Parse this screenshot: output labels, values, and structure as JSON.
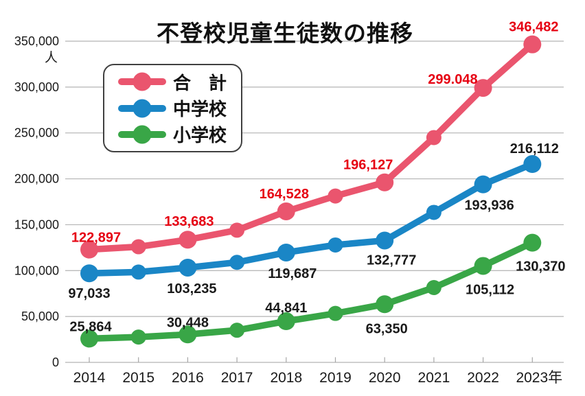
{
  "title": "不登校児童生徒数の推移",
  "legend": {
    "items": [
      {
        "label": "合　計",
        "color": "#ea556e"
      },
      {
        "label": "中学校",
        "color": "#1a86c6"
      },
      {
        "label": "小学校",
        "color": "#39a647"
      }
    ]
  },
  "chart_data": {
    "type": "line",
    "title": "不登校児童生徒数の推移",
    "ylabel_unit": "人",
    "ylim": [
      0,
      350000
    ],
    "grid": true,
    "legend_position": "upper-left",
    "y_ticks": [
      "0",
      "50,000",
      "100,000",
      "150,000",
      "200,000",
      "250,000",
      "300,000",
      "350,000"
    ],
    "x_categories": [
      "2014",
      "2015",
      "2016",
      "2017",
      "2018",
      "2019",
      "2020",
      "2021",
      "2022",
      "2023年"
    ],
    "series": [
      {
        "name": "合　計",
        "color": "#ea556e",
        "label_color": "#e60012",
        "values": [
          122897,
          125991,
          133683,
          144031,
          164528,
          181272,
          196127,
          244940,
          299048,
          346482
        ],
        "point_labels": [
          {
            "x": "2014",
            "text": "122,897"
          },
          {
            "x": "2016",
            "text": "133,683"
          },
          {
            "x": "2018",
            "text": "164,528"
          },
          {
            "x": "2020",
            "text": "196,127"
          },
          {
            "x": "2022",
            "text": "299.048"
          },
          {
            "x": "2023年",
            "text": "346,482"
          }
        ]
      },
      {
        "name": "中学校",
        "color": "#1a86c6",
        "label_color": "#1a1a1a",
        "values": [
          97033,
          98408,
          103235,
          108999,
          119687,
          127922,
          132777,
          163442,
          193936,
          216112
        ],
        "point_labels": [
          {
            "x": "2014",
            "text": "97,033"
          },
          {
            "x": "2016",
            "text": "103,235"
          },
          {
            "x": "2018",
            "text": "119,687"
          },
          {
            "x": "2020",
            "text": "132,777"
          },
          {
            "x": "2022",
            "text": "193,936"
          },
          {
            "x": "2023年",
            "text": "216,112"
          }
        ]
      },
      {
        "name": "小学校",
        "color": "#39a647",
        "label_color": "#1a1a1a",
        "values": [
          25864,
          27583,
          30448,
          35032,
          44841,
          53350,
          63350,
          81498,
          105112,
          130370
        ],
        "point_labels": [
          {
            "x": "2014",
            "text": "25,864"
          },
          {
            "x": "2016",
            "text": "30,448"
          },
          {
            "x": "2018",
            "text": "44,841"
          },
          {
            "x": "2020",
            "text": "63,350"
          },
          {
            "x": "2022",
            "text": "105,112"
          },
          {
            "x": "2023年",
            "text": "130,370"
          }
        ]
      }
    ]
  }
}
